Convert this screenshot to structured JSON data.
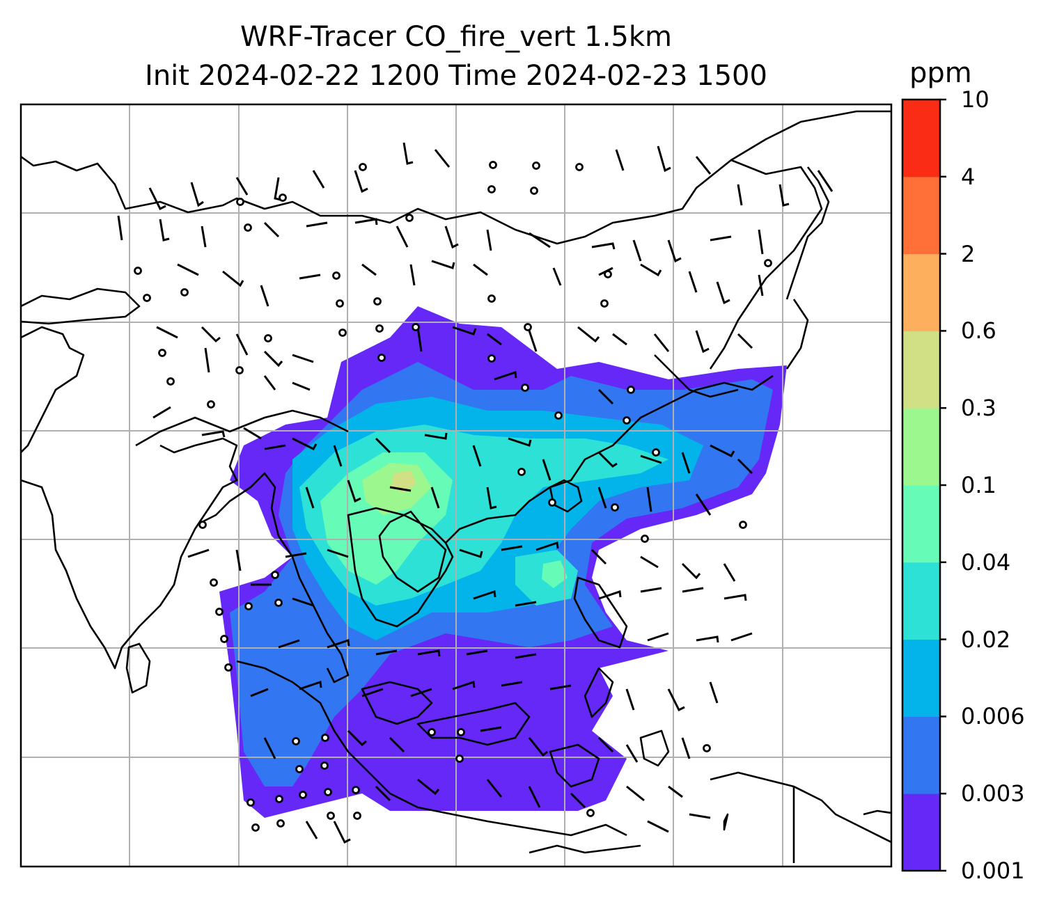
{
  "title": {
    "line1": "WRF-Tracer CO_fire_vert 1.5km",
    "line2": "Init 2024-02-22 1200 Time 2024-02-23 1500"
  },
  "colorbar": {
    "units": "ppm",
    "levels": [
      "0.001",
      "0.003",
      "0.006",
      "0.02",
      "0.04",
      "0.1",
      "0.3",
      "0.6",
      "2",
      "4",
      "10"
    ],
    "colors": [
      "#6528f7",
      "#3376f1",
      "#03b4eb",
      "#2de1d6",
      "#66fbb7",
      "#9cf88e",
      "#d1e085",
      "#fdaf5e",
      "#fe7038",
      "#fa2c16"
    ]
  },
  "map": {
    "frame_color": "#000000",
    "grid_color": "#b0b0b0",
    "coastline_color": "#000000",
    "field_variable": "CO_fire_vert",
    "wind_barb_color": "#000000"
  }
}
